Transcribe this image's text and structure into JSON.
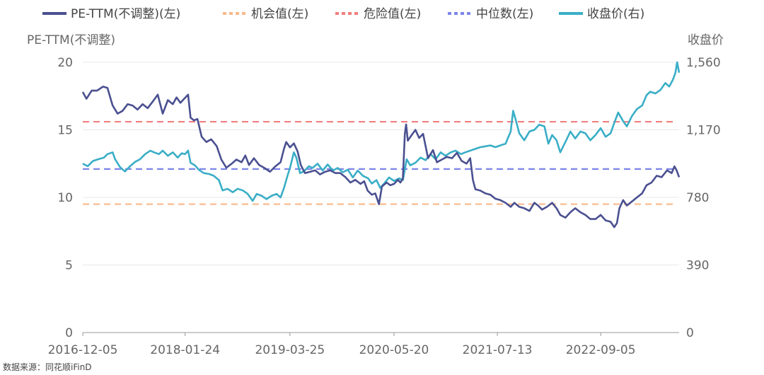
{
  "chart_data": {
    "type": "line",
    "legend": [
      {
        "label": "PE-TTM(不调整)(左)",
        "color": "#4a5090",
        "dash": false
      },
      {
        "label": "机会值(左)",
        "color": "#f8b98a",
        "dash": true
      },
      {
        "label": "危险值(左)",
        "color": "#f07f7f",
        "dash": true
      },
      {
        "label": "中位数(左)",
        "color": "#7d86e8",
        "dash": true
      },
      {
        "label": "收盘价(右)",
        "color": "#3aaec6",
        "dash": false
      }
    ],
    "left_axis": {
      "title": "PE-TTM(不调整)",
      "ticks": [
        "0",
        "5",
        "10",
        "15",
        "20"
      ],
      "range": [
        0,
        20
      ]
    },
    "right_axis": {
      "title": "收盘价",
      "ticks": [
        "0",
        "390",
        "780",
        "1,170",
        "1,560"
      ],
      "range": [
        0,
        1560
      ]
    },
    "x_ticks": [
      "2016-12-05",
      "2018-01-24",
      "2019-03-25",
      "2020-05-20",
      "2021-07-13",
      "2022-09-05"
    ],
    "x_range": [
      "2016-12-05",
      "2023-07-20"
    ],
    "reference_lines": {
      "opportunity": 9.5,
      "danger": 15.6,
      "median": 12.1
    },
    "series": [
      {
        "name": "PE-TTM(不调整)(左)",
        "axis": "left",
        "color": "#4a5090",
        "points": [
          [
            "2016-12-05",
            17.8
          ],
          [
            "2016-12-20",
            17.3
          ],
          [
            "2017-01-10",
            17.9
          ],
          [
            "2017-02-01",
            17.9
          ],
          [
            "2017-02-25",
            18.2
          ],
          [
            "2017-03-15",
            18.1
          ],
          [
            "2017-04-05",
            16.8
          ],
          [
            "2017-04-25",
            16.2
          ],
          [
            "2017-05-15",
            16.4
          ],
          [
            "2017-06-05",
            16.9
          ],
          [
            "2017-06-25",
            16.8
          ],
          [
            "2017-07-15",
            16.5
          ],
          [
            "2017-08-05",
            16.9
          ],
          [
            "2017-08-25",
            16.6
          ],
          [
            "2017-09-15",
            17.1
          ],
          [
            "2017-10-05",
            17.6
          ],
          [
            "2017-10-25",
            16.2
          ],
          [
            "2017-11-15",
            17.2
          ],
          [
            "2017-12-05",
            16.9
          ],
          [
            "2017-12-20",
            17.4
          ],
          [
            "2018-01-05",
            17.0
          ],
          [
            "2018-01-20",
            17.3
          ],
          [
            "2018-02-05",
            17.6
          ],
          [
            "2018-02-15",
            15.9
          ],
          [
            "2018-03-01",
            15.7
          ],
          [
            "2018-03-15",
            15.8
          ],
          [
            "2018-04-01",
            14.5
          ],
          [
            "2018-04-20",
            14.1
          ],
          [
            "2018-05-10",
            14.3
          ],
          [
            "2018-06-01",
            13.8
          ],
          [
            "2018-06-20",
            12.8
          ],
          [
            "2018-07-10",
            12.2
          ],
          [
            "2018-08-01",
            12.5
          ],
          [
            "2018-08-20",
            12.8
          ],
          [
            "2018-09-10",
            12.6
          ],
          [
            "2018-09-25",
            13.1
          ],
          [
            "2018-10-10",
            12.4
          ],
          [
            "2018-10-30",
            12.9
          ],
          [
            "2018-11-20",
            12.4
          ],
          [
            "2018-12-10",
            12.2
          ],
          [
            "2019-01-03",
            11.9
          ],
          [
            "2019-01-25",
            12.3
          ],
          [
            "2019-02-15",
            12.6
          ],
          [
            "2019-03-01",
            13.6
          ],
          [
            "2019-03-10",
            14.1
          ],
          [
            "2019-03-25",
            13.7
          ],
          [
            "2019-04-10",
            14.0
          ],
          [
            "2019-04-25",
            13.4
          ],
          [
            "2019-05-08",
            12.4
          ],
          [
            "2019-05-25",
            11.8
          ],
          [
            "2019-06-15",
            11.9
          ],
          [
            "2019-07-05",
            12.0
          ],
          [
            "2019-07-25",
            11.7
          ],
          [
            "2019-08-15",
            11.9
          ],
          [
            "2019-09-05",
            12.0
          ],
          [
            "2019-09-25",
            11.8
          ],
          [
            "2019-10-15",
            11.8
          ],
          [
            "2019-11-05",
            11.5
          ],
          [
            "2019-11-25",
            11.1
          ],
          [
            "2019-12-15",
            11.3
          ],
          [
            "2020-01-05",
            11.0
          ],
          [
            "2020-01-20",
            11.2
          ],
          [
            "2020-02-03",
            10.5
          ],
          [
            "2020-02-20",
            10.2
          ],
          [
            "2020-03-05",
            10.3
          ],
          [
            "2020-03-20",
            9.5
          ],
          [
            "2020-04-01",
            10.8
          ],
          [
            "2020-04-20",
            11.1
          ],
          [
            "2020-05-05",
            10.9
          ],
          [
            "2020-05-20",
            11.0
          ],
          [
            "2020-06-05",
            11.3
          ],
          [
            "2020-06-15",
            11.1
          ],
          [
            "2020-06-25",
            11.4
          ],
          [
            "2020-07-03",
            14.7
          ],
          [
            "2020-07-08",
            15.4
          ],
          [
            "2020-07-15",
            14.2
          ],
          [
            "2020-07-30",
            14.6
          ],
          [
            "2020-08-15",
            15.0
          ],
          [
            "2020-08-30",
            14.4
          ],
          [
            "2020-09-15",
            14.7
          ],
          [
            "2020-10-05",
            12.9
          ],
          [
            "2020-10-25",
            13.5
          ],
          [
            "2020-11-10",
            12.6
          ],
          [
            "2020-11-30",
            12.8
          ],
          [
            "2020-12-20",
            13.0
          ],
          [
            "2021-01-10",
            12.9
          ],
          [
            "2021-01-30",
            13.3
          ],
          [
            "2021-02-18",
            12.7
          ],
          [
            "2021-03-10",
            12.5
          ],
          [
            "2021-03-25",
            12.9
          ],
          [
            "2021-04-05",
            11.3
          ],
          [
            "2021-04-15",
            10.6
          ],
          [
            "2021-05-05",
            10.5
          ],
          [
            "2021-05-25",
            10.3
          ],
          [
            "2021-06-15",
            10.2
          ],
          [
            "2021-07-05",
            9.9
          ],
          [
            "2021-07-25",
            9.8
          ],
          [
            "2021-08-15",
            9.6
          ],
          [
            "2021-09-05",
            9.3
          ],
          [
            "2021-09-20",
            9.6
          ],
          [
            "2021-10-10",
            9.3
          ],
          [
            "2021-10-30",
            9.2
          ],
          [
            "2021-11-20",
            9.0
          ],
          [
            "2021-12-10",
            9.6
          ],
          [
            "2021-12-25",
            9.4
          ],
          [
            "2022-01-10",
            9.1
          ],
          [
            "2022-01-30",
            9.3
          ],
          [
            "2022-02-20",
            9.6
          ],
          [
            "2022-03-10",
            9.2
          ],
          [
            "2022-03-25",
            8.7
          ],
          [
            "2022-04-15",
            8.5
          ],
          [
            "2022-05-05",
            8.9
          ],
          [
            "2022-05-25",
            9.2
          ],
          [
            "2022-06-15",
            8.9
          ],
          [
            "2022-07-05",
            8.7
          ],
          [
            "2022-07-25",
            8.4
          ],
          [
            "2022-08-15",
            8.4
          ],
          [
            "2022-09-05",
            8.7
          ],
          [
            "2022-09-25",
            8.3
          ],
          [
            "2022-10-15",
            8.2
          ],
          [
            "2022-10-30",
            7.8
          ],
          [
            "2022-11-10",
            8.1
          ],
          [
            "2022-11-20",
            9.2
          ],
          [
            "2022-12-05",
            9.8
          ],
          [
            "2022-12-20",
            9.4
          ],
          [
            "2023-01-10",
            9.7
          ],
          [
            "2023-01-30",
            10.0
          ],
          [
            "2023-02-20",
            10.3
          ],
          [
            "2023-03-10",
            10.9
          ],
          [
            "2023-03-30",
            11.1
          ],
          [
            "2023-04-20",
            11.6
          ],
          [
            "2023-05-10",
            11.5
          ],
          [
            "2023-06-01",
            12.0
          ],
          [
            "2023-06-20",
            11.8
          ],
          [
            "2023-07-01",
            12.3
          ],
          [
            "2023-07-10",
            12.0
          ],
          [
            "2023-07-20",
            11.5
          ]
        ]
      },
      {
        "name": "收盘价(右)",
        "axis": "right",
        "color": "#3aaec6",
        "points": [
          [
            "2016-12-05",
            975
          ],
          [
            "2016-12-25",
            960
          ],
          [
            "2017-01-15",
            990
          ],
          [
            "2017-02-05",
            1000
          ],
          [
            "2017-03-01",
            1010
          ],
          [
            "2017-03-15",
            1030
          ],
          [
            "2017-04-05",
            1040
          ],
          [
            "2017-04-15",
            1000
          ],
          [
            "2017-05-05",
            955
          ],
          [
            "2017-05-25",
            930
          ],
          [
            "2017-06-15",
            960
          ],
          [
            "2017-07-05",
            985
          ],
          [
            "2017-07-25",
            1000
          ],
          [
            "2017-08-15",
            1030
          ],
          [
            "2017-09-05",
            1050
          ],
          [
            "2017-09-20",
            1040
          ],
          [
            "2017-10-10",
            1030
          ],
          [
            "2017-10-25",
            1050
          ],
          [
            "2017-11-15",
            1020
          ],
          [
            "2017-12-05",
            1040
          ],
          [
            "2017-12-25",
            1010
          ],
          [
            "2018-01-10",
            1035
          ],
          [
            "2018-01-24",
            1030
          ],
          [
            "2018-02-05",
            1050
          ],
          [
            "2018-02-15",
            980
          ],
          [
            "2018-03-05",
            965
          ],
          [
            "2018-03-20",
            940
          ],
          [
            "2018-04-10",
            920
          ],
          [
            "2018-05-01",
            915
          ],
          [
            "2018-05-20",
            905
          ],
          [
            "2018-06-10",
            880
          ],
          [
            "2018-06-25",
            820
          ],
          [
            "2018-07-15",
            830
          ],
          [
            "2018-08-05",
            810
          ],
          [
            "2018-08-25",
            830
          ],
          [
            "2018-09-15",
            820
          ],
          [
            "2018-10-05",
            800
          ],
          [
            "2018-10-25",
            760
          ],
          [
            "2018-11-10",
            800
          ],
          [
            "2018-11-30",
            790
          ],
          [
            "2018-12-20",
            770
          ],
          [
            "2019-01-10",
            790
          ],
          [
            "2019-01-30",
            800
          ],
          [
            "2019-02-15",
            780
          ],
          [
            "2019-02-28",
            830
          ],
          [
            "2019-03-15",
            905
          ],
          [
            "2019-03-25",
            950
          ],
          [
            "2019-04-10",
            1040
          ],
          [
            "2019-04-20",
            1010
          ],
          [
            "2019-05-05",
            920
          ],
          [
            "2019-05-20",
            930
          ],
          [
            "2019-06-10",
            960
          ],
          [
            "2019-06-25",
            950
          ],
          [
            "2019-07-15",
            975
          ],
          [
            "2019-08-05",
            935
          ],
          [
            "2019-08-25",
            970
          ],
          [
            "2019-09-15",
            935
          ],
          [
            "2019-10-05",
            950
          ],
          [
            "2019-10-25",
            925
          ],
          [
            "2019-11-15",
            940
          ],
          [
            "2019-12-05",
            895
          ],
          [
            "2019-12-25",
            935
          ],
          [
            "2020-01-15",
            905
          ],
          [
            "2020-02-05",
            890
          ],
          [
            "2020-02-20",
            860
          ],
          [
            "2020-03-10",
            880
          ],
          [
            "2020-03-25",
            835
          ],
          [
            "2020-04-10",
            860
          ],
          [
            "2020-04-30",
            895
          ],
          [
            "2020-05-20",
            875
          ],
          [
            "2020-06-10",
            890
          ],
          [
            "2020-06-25",
            880
          ],
          [
            "2020-07-03",
            940
          ],
          [
            "2020-07-10",
            1000
          ],
          [
            "2020-07-25",
            965
          ],
          [
            "2020-08-15",
            980
          ],
          [
            "2020-09-05",
            1010
          ],
          [
            "2020-09-25",
            995
          ],
          [
            "2020-10-15",
            1030
          ],
          [
            "2020-11-05",
            1000
          ],
          [
            "2020-11-25",
            1040
          ],
          [
            "2020-12-15",
            1020
          ],
          [
            "2021-01-05",
            1040
          ],
          [
            "2021-01-25",
            1050
          ],
          [
            "2021-02-15",
            1030
          ],
          [
            "2021-03-05",
            1040
          ],
          [
            "2021-03-25",
            1050
          ],
          [
            "2021-04-15",
            1060
          ],
          [
            "2021-05-05",
            1070
          ],
          [
            "2021-05-25",
            1075
          ],
          [
            "2021-06-15",
            1080
          ],
          [
            "2021-07-05",
            1070
          ],
          [
            "2021-07-25",
            1080
          ],
          [
            "2021-08-15",
            1090
          ],
          [
            "2021-09-05",
            1160
          ],
          [
            "2021-09-15",
            1280
          ],
          [
            "2021-09-25",
            1230
          ],
          [
            "2021-10-10",
            1150
          ],
          [
            "2021-10-30",
            1110
          ],
          [
            "2021-11-20",
            1160
          ],
          [
            "2021-12-10",
            1170
          ],
          [
            "2021-12-30",
            1200
          ],
          [
            "2022-01-20",
            1190
          ],
          [
            "2022-02-05",
            1090
          ],
          [
            "2022-02-20",
            1140
          ],
          [
            "2022-03-10",
            1110
          ],
          [
            "2022-03-25",
            1040
          ],
          [
            "2022-04-15",
            1100
          ],
          [
            "2022-05-05",
            1160
          ],
          [
            "2022-05-25",
            1120
          ],
          [
            "2022-06-15",
            1160
          ],
          [
            "2022-07-05",
            1150
          ],
          [
            "2022-07-25",
            1110
          ],
          [
            "2022-08-15",
            1140
          ],
          [
            "2022-09-05",
            1180
          ],
          [
            "2022-09-25",
            1130
          ],
          [
            "2022-10-15",
            1150
          ],
          [
            "2022-10-30",
            1210
          ],
          [
            "2022-11-15",
            1270
          ],
          [
            "2022-12-05",
            1220
          ],
          [
            "2022-12-20",
            1190
          ],
          [
            "2023-01-10",
            1250
          ],
          [
            "2023-01-30",
            1290
          ],
          [
            "2023-02-20",
            1310
          ],
          [
            "2023-03-10",
            1370
          ],
          [
            "2023-03-25",
            1390
          ],
          [
            "2023-04-15",
            1380
          ],
          [
            "2023-05-05",
            1400
          ],
          [
            "2023-05-25",
            1440
          ],
          [
            "2023-06-10",
            1420
          ],
          [
            "2023-06-25",
            1460
          ],
          [
            "2023-07-05",
            1500
          ],
          [
            "2023-07-12",
            1560
          ],
          [
            "2023-07-20",
            1500
          ]
        ]
      }
    ]
  },
  "source_text": "数据来源：同花顺iFinD"
}
